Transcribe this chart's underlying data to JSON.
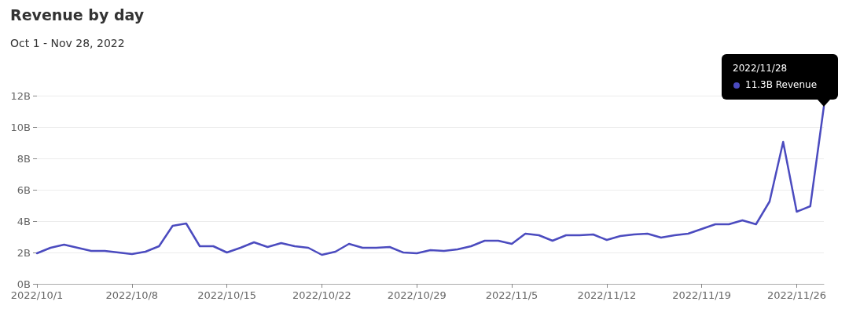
{
  "chart_data": {
    "type": "line",
    "title": "Revenue by day",
    "subtitle": "Oct 1 - Nov 28, 2022",
    "x": [
      "2022-10-01",
      "2022-10-02",
      "2022-10-03",
      "2022-10-04",
      "2022-10-05",
      "2022-10-06",
      "2022-10-07",
      "2022-10-08",
      "2022-10-09",
      "2022-10-10",
      "2022-10-11",
      "2022-10-12",
      "2022-10-13",
      "2022-10-14",
      "2022-10-15",
      "2022-10-16",
      "2022-10-17",
      "2022-10-18",
      "2022-10-19",
      "2022-10-20",
      "2022-10-21",
      "2022-10-22",
      "2022-10-23",
      "2022-10-24",
      "2022-10-25",
      "2022-10-26",
      "2022-10-27",
      "2022-10-28",
      "2022-10-29",
      "2022-10-30",
      "2022-10-31",
      "2022-11-01",
      "2022-11-02",
      "2022-11-03",
      "2022-11-04",
      "2022-11-05",
      "2022-11-06",
      "2022-11-07",
      "2022-11-08",
      "2022-11-09",
      "2022-11-10",
      "2022-11-11",
      "2022-11-12",
      "2022-11-13",
      "2022-11-14",
      "2022-11-15",
      "2022-11-16",
      "2022-11-17",
      "2022-11-18",
      "2022-11-19",
      "2022-11-20",
      "2022-11-21",
      "2022-11-22",
      "2022-11-23",
      "2022-11-24",
      "2022-11-25",
      "2022-11-26",
      "2022-11-27",
      "2022-11-28"
    ],
    "series": [
      {
        "name": "Revenue",
        "color": "#4b4bbf",
        "values": [
          1.95,
          2.3,
          2.5,
          2.3,
          2.1,
          2.1,
          2.0,
          1.9,
          2.05,
          2.4,
          3.7,
          3.85,
          2.4,
          2.4,
          2.0,
          2.3,
          2.65,
          2.35,
          2.6,
          2.4,
          2.3,
          1.85,
          2.05,
          2.55,
          2.3,
          2.3,
          2.35,
          2.0,
          1.95,
          2.15,
          2.1,
          2.2,
          2.4,
          2.75,
          2.75,
          2.55,
          3.2,
          3.1,
          2.75,
          3.1,
          3.1,
          3.15,
          2.8,
          3.05,
          3.15,
          3.2,
          2.95,
          3.1,
          3.2,
          3.5,
          3.8,
          3.8,
          4.05,
          3.8,
          5.25,
          9.05,
          4.6,
          4.95,
          11.3
        ],
        "value_labels": [
          null,
          null,
          null,
          null,
          null,
          null,
          null,
          null,
          null,
          null,
          null,
          null,
          null,
          null,
          null,
          null,
          null,
          null,
          null,
          null,
          null,
          null,
          null,
          null,
          null,
          null,
          null,
          null,
          null,
          null,
          null,
          null,
          null,
          null,
          null,
          null,
          null,
          null,
          null,
          null,
          null,
          null,
          null,
          null,
          null,
          null,
          null,
          null,
          null,
          null,
          null,
          null,
          null,
          null,
          null,
          null,
          null,
          null,
          "11.3B"
        ]
      }
    ],
    "annotations": [
      "2022/11/28"
    ],
    "xlim": [
      "2022-10-01",
      "2022-11-28"
    ],
    "xticks": [
      {
        "value": "2022-10-01",
        "label": "2022/10/1"
      },
      {
        "value": "2022-10-08",
        "label": "2022/10/8"
      },
      {
        "value": "2022-10-15",
        "label": "2022/10/15"
      },
      {
        "value": "2022-10-22",
        "label": "2022/10/22"
      },
      {
        "value": "2022-10-29",
        "label": "2022/10/29"
      },
      {
        "value": "2022-11-05",
        "label": "2022/11/5"
      },
      {
        "value": "2022-11-12",
        "label": "2022/11/12"
      },
      {
        "value": "2022-11-19",
        "label": "2022/11/19"
      },
      {
        "value": "2022-11-26",
        "label": "2022/11/26"
      }
    ],
    "ylim": [
      0,
      12
    ],
    "yticks": [
      {
        "value": 0,
        "label": "0B"
      },
      {
        "value": 2,
        "label": "2B"
      },
      {
        "value": 4,
        "label": "4B"
      },
      {
        "value": 6,
        "label": "6B"
      },
      {
        "value": 8,
        "label": "8B"
      },
      {
        "value": 10,
        "label": "10B"
      },
      {
        "value": 12,
        "label": "12B"
      }
    ],
    "grid": "y",
    "legend": false,
    "marker": "none",
    "line_style": "solid"
  }
}
